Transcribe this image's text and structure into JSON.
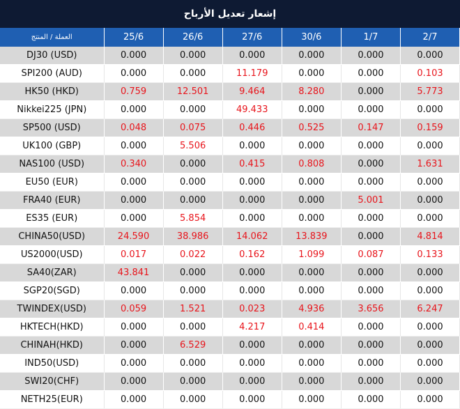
{
  "title": "إشعار تعديل الأرباح",
  "header": {
    "product_label": "العملة / المنتج",
    "dates": [
      "25/6",
      "26/6",
      "27/6",
      "30/6",
      "1/7",
      "2/7"
    ]
  },
  "colors": {
    "title_bg": "#0e1a33",
    "header_bg": "#1f5fb2",
    "shaded_row": "#d8d8d8",
    "nonzero_value": "#e8141b"
  },
  "rows": [
    {
      "product": "DJ30 (USD)",
      "values": [
        "0.000",
        "0.000",
        "0.000",
        "0.000",
        "0.000",
        "0.000"
      ]
    },
    {
      "product": "SPI200 (AUD)",
      "values": [
        "0.000",
        "0.000",
        "11.179",
        "0.000",
        "0.000",
        "0.103"
      ]
    },
    {
      "product": "HK50 (HKD)",
      "values": [
        "0.759",
        "12.501",
        "9.464",
        "8.280",
        "0.000",
        "5.773"
      ]
    },
    {
      "product": "Nikkei225 (JPN)",
      "values": [
        "0.000",
        "0.000",
        "49.433",
        "0.000",
        "0.000",
        "0.000"
      ]
    },
    {
      "product": "SP500 (USD)",
      "values": [
        "0.048",
        "0.075",
        "0.446",
        "0.525",
        "0.147",
        "0.159"
      ]
    },
    {
      "product": "UK100 (GBP)",
      "values": [
        "0.000",
        "5.506",
        "0.000",
        "0.000",
        "0.000",
        "0.000"
      ]
    },
    {
      "product": "NAS100 (USD)",
      "values": [
        "0.340",
        "0.000",
        "0.415",
        "0.808",
        "0.000",
        "1.631"
      ]
    },
    {
      "product": "EU50 (EUR)",
      "values": [
        "0.000",
        "0.000",
        "0.000",
        "0.000",
        "0.000",
        "0.000"
      ]
    },
    {
      "product": "FRA40 (EUR)",
      "values": [
        "0.000",
        "0.000",
        "0.000",
        "0.000",
        "5.001",
        "0.000"
      ]
    },
    {
      "product": "ES35 (EUR)",
      "values": [
        "0.000",
        "5.854",
        "0.000",
        "0.000",
        "0.000",
        "0.000"
      ]
    },
    {
      "product": "CHINA50(USD)",
      "values": [
        "24.590",
        "38.986",
        "14.062",
        "13.839",
        "0.000",
        "4.814"
      ]
    },
    {
      "product": "US2000(USD)",
      "values": [
        "0.017",
        "0.022",
        "0.162",
        "1.099",
        "0.087",
        "0.133"
      ]
    },
    {
      "product": "SA40(ZAR)",
      "values": [
        "43.841",
        "0.000",
        "0.000",
        "0.000",
        "0.000",
        "0.000"
      ]
    },
    {
      "product": "SGP20(SGD)",
      "values": [
        "0.000",
        "0.000",
        "0.000",
        "0.000",
        "0.000",
        "0.000"
      ]
    },
    {
      "product": "TWINDEX(USD)",
      "values": [
        "0.059",
        "1.521",
        "0.023",
        "4.936",
        "3.656",
        "6.247"
      ]
    },
    {
      "product": "HKTECH(HKD)",
      "values": [
        "0.000",
        "0.000",
        "4.217",
        "0.414",
        "0.000",
        "0.000"
      ]
    },
    {
      "product": "CHINAH(HKD)",
      "values": [
        "0.000",
        "6.529",
        "0.000",
        "0.000",
        "0.000",
        "0.000"
      ]
    },
    {
      "product": "IND50(USD)",
      "values": [
        "0.000",
        "0.000",
        "0.000",
        "0.000",
        "0.000",
        "0.000"
      ]
    },
    {
      "product": "SWI20(CHF)",
      "values": [
        "0.000",
        "0.000",
        "0.000",
        "0.000",
        "0.000",
        "0.000"
      ]
    },
    {
      "product": "NETH25(EUR)",
      "values": [
        "0.000",
        "0.000",
        "0.000",
        "0.000",
        "0.000",
        "0.000"
      ]
    }
  ]
}
